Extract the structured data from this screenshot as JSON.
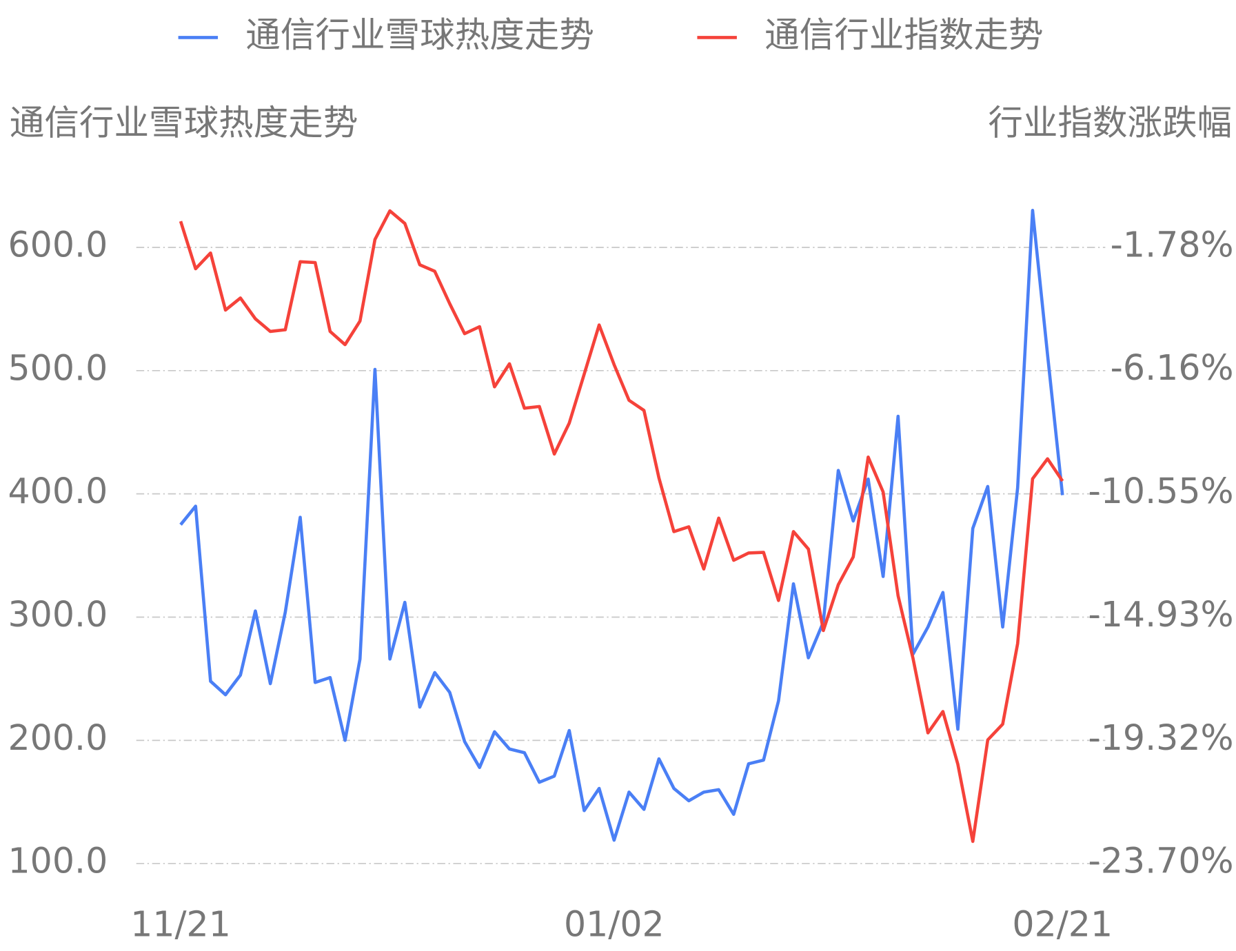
{
  "chart_data": {
    "type": "line",
    "y_label": "通信行业雪球热度走势",
    "y2_label": "行业指数涨跌幅",
    "categories": [
      "11/21",
      null,
      null,
      null,
      null,
      null,
      null,
      null,
      null,
      null,
      null,
      null,
      null,
      null,
      null,
      null,
      null,
      null,
      null,
      null,
      null,
      null,
      null,
      null,
      null,
      null,
      null,
      null,
      null,
      "01/02",
      null,
      null,
      null,
      null,
      null,
      null,
      null,
      null,
      null,
      null,
      null,
      null,
      null,
      null,
      null,
      null,
      null,
      null,
      null,
      null,
      null,
      null,
      null,
      null,
      null,
      null,
      null,
      null,
      null,
      "02/21"
    ],
    "series": [
      {
        "name": "通信行业雪球热度走势",
        "color": "#4a7ff5",
        "values": [
          375,
          390,
          248,
          237,
          253,
          305,
          246,
          304,
          381,
          247,
          251,
          200,
          266,
          501,
          266,
          312,
          227,
          255,
          239,
          199,
          178,
          207,
          193,
          190,
          166,
          171,
          208,
          143,
          161,
          119,
          158,
          144,
          185,
          161,
          151,
          158,
          160,
          140,
          181,
          184,
          232,
          327,
          267,
          296,
          419,
          378,
          412,
          333,
          463,
          270,
          292,
          320,
          209,
          372,
          406,
          292,
          405,
          630,
          513,
          399
        ]
      },
      {
        "name": "通信行业指数走势",
        "color": "#f5423a",
        "axis": "y2",
        "values": [
          -0.85,
          -2.54,
          -1.98,
          -4.01,
          -3.58,
          -4.32,
          -4.77,
          -4.71,
          -2.29,
          -2.32,
          -4.77,
          -5.24,
          -4.4,
          -1.5,
          -0.48,
          -0.93,
          -2.4,
          -2.63,
          -3.78,
          -4.85,
          -4.6,
          -6.74,
          -5.92,
          -7.5,
          -7.44,
          -9.13,
          -8.03,
          -6.29,
          -4.54,
          -5.95,
          -7.22,
          -7.58,
          -9.98,
          -11.89,
          -11.72,
          -13.22,
          -11.41,
          -12.91,
          -12.65,
          -12.63,
          -14.34,
          -11.89,
          -12.51,
          -15.41,
          -13.78,
          -12.79,
          -9.24,
          -10.48,
          -14.17,
          -16.4,
          -19.05,
          -18.29,
          -20.17,
          -22.91,
          -19.3,
          -18.74,
          -15.87,
          -10.01,
          -9.3,
          -10.09
        ]
      }
    ],
    "ylim": [
      100,
      600
    ],
    "yticks": [
      {
        "value": 100,
        "label": "100.0"
      },
      {
        "value": 200,
        "label": "200.0"
      },
      {
        "value": 300,
        "label": "300.0"
      },
      {
        "value": 400,
        "label": "400.0"
      },
      {
        "value": 500,
        "label": "500.0"
      },
      {
        "value": 600,
        "label": "600.0"
      }
    ],
    "y2lim": [
      -23.7,
      -1.78
    ],
    "y2ticks": [
      {
        "value": -23.7,
        "label": "-23.70%"
      },
      {
        "value": -19.32,
        "label": "-19.32%"
      },
      {
        "value": -14.93,
        "label": "-14.93%"
      },
      {
        "value": -10.55,
        "label": "-10.55%"
      },
      {
        "value": -6.16,
        "label": "-6.16%"
      },
      {
        "value": -1.78,
        "label": "-1.78%"
      }
    ],
    "grid": true,
    "legend": "top"
  }
}
